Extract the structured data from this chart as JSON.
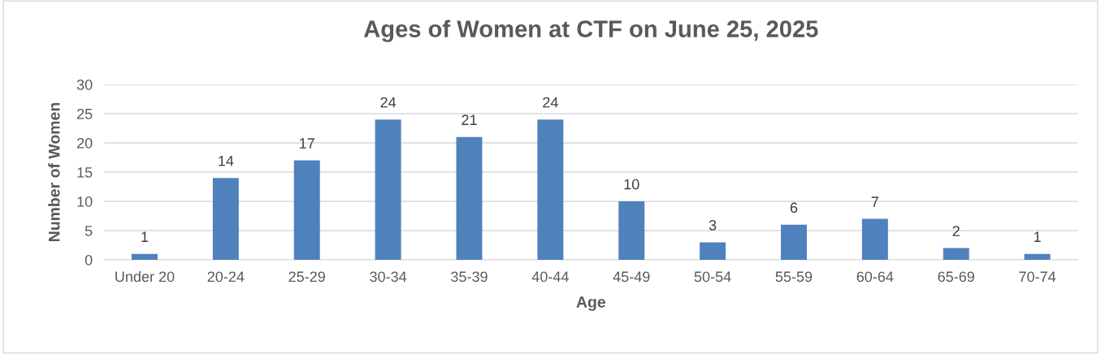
{
  "chart_data": {
    "type": "bar",
    "title": "Ages of Women at CTF on June 25, 2025",
    "xlabel": "Age",
    "ylabel": "Number of Women",
    "categories": [
      "Under 20",
      "20-24",
      "25-29",
      "30-34",
      "35-39",
      "40-44",
      "45-49",
      "50-54",
      "55-59",
      "60-64",
      "65-69",
      "70-74"
    ],
    "values": [
      1,
      14,
      17,
      24,
      21,
      24,
      10,
      3,
      6,
      7,
      2,
      1
    ],
    "color": "#4f81bd",
    "ylim": [
      0,
      30
    ],
    "yticks": [
      0,
      5,
      10,
      15,
      20,
      25,
      30
    ],
    "grid": "y",
    "data_labels": true
  }
}
